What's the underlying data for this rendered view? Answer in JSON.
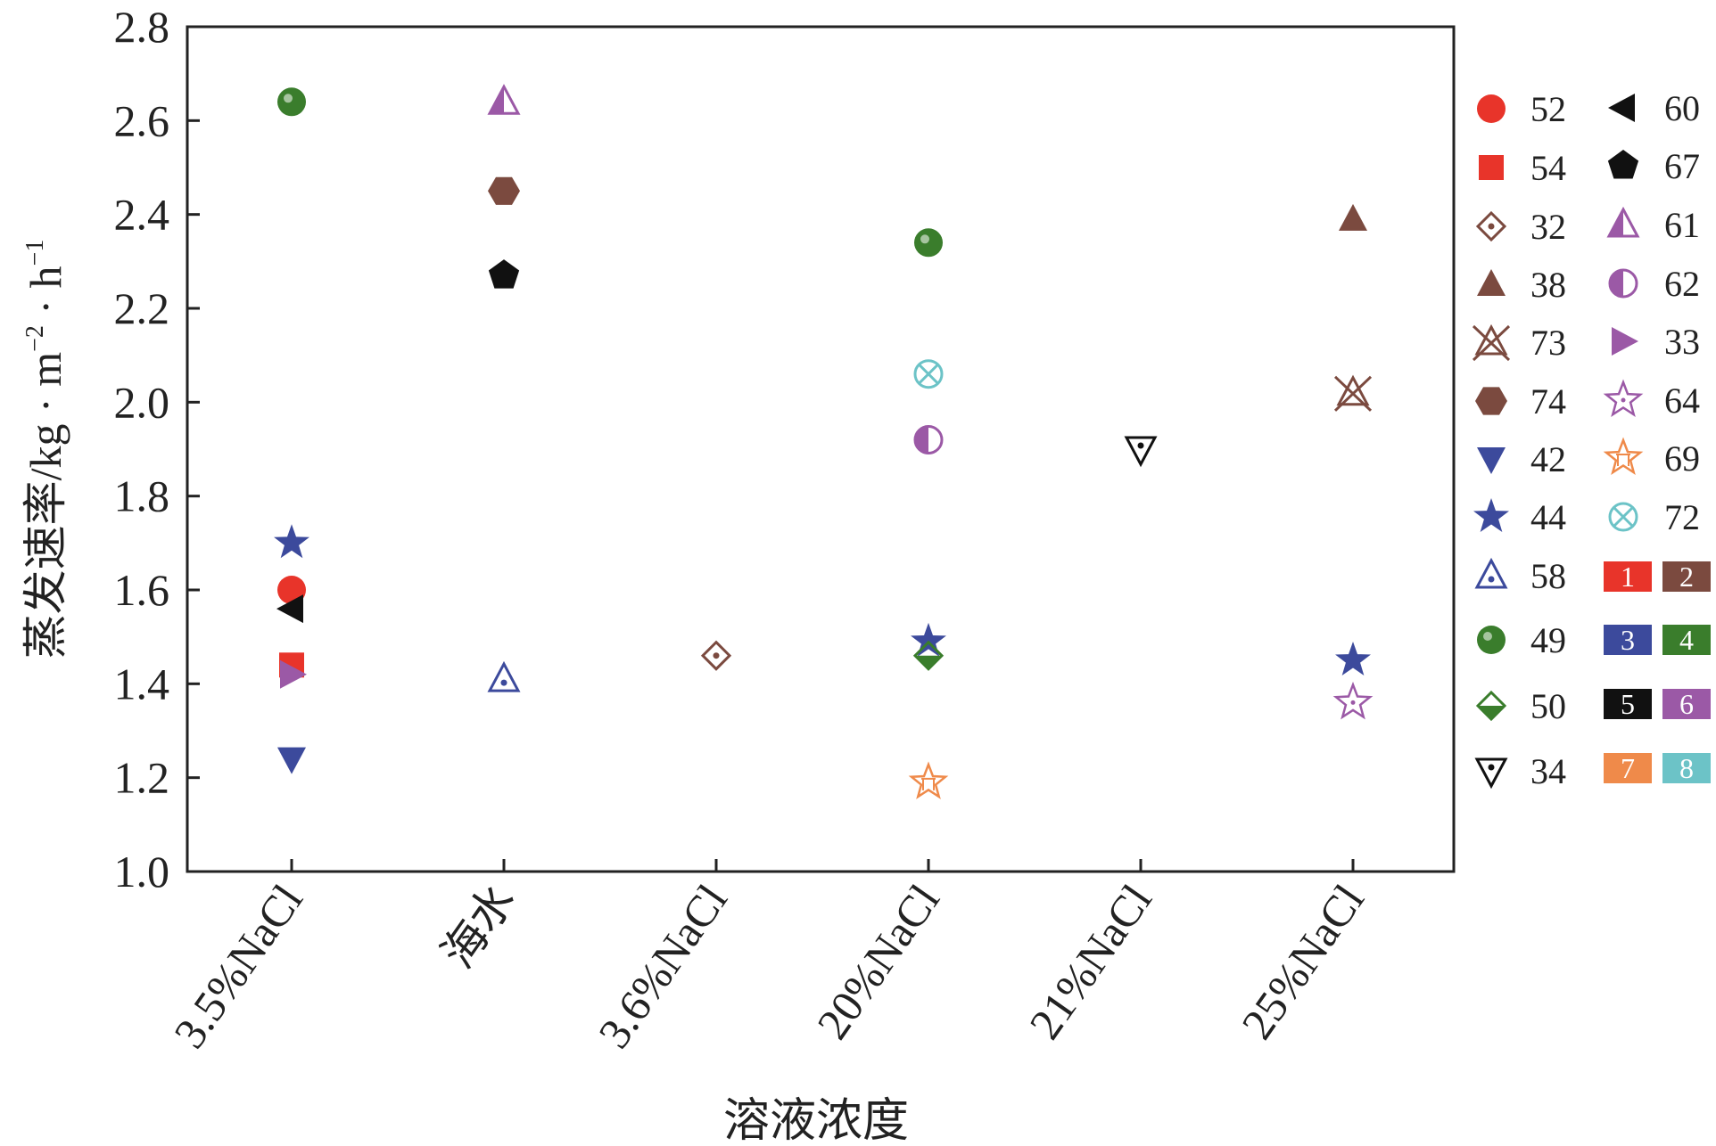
{
  "chart_data": {
    "type": "scatter",
    "title": "",
    "xlabel": "溶液浓度",
    "ylabel": "蒸发速率/kg·m⁻²·h⁻¹",
    "ylabel_parts": {
      "main": "蒸发速率/kg · m",
      "exp1": "−2",
      "mid": " · h",
      "exp2": "−1"
    },
    "categories": [
      "3.5%NaCl",
      "海水",
      "3.6%NaCl",
      "20%NaCl",
      "21%NaCl",
      "25%NaCl"
    ],
    "y_ticks": [
      "1.0",
      "1.2",
      "1.4",
      "1.6",
      "1.8",
      "2.0",
      "2.2",
      "2.4",
      "2.6",
      "2.8"
    ],
    "ylim": [
      1.0,
      2.8
    ],
    "grid": false,
    "legend_position": "right",
    "series": [
      {
        "name": "52",
        "marker": "circle",
        "color": "#e8342a",
        "points": [
          {
            "x": "3.5%NaCl",
            "y": 1.6
          }
        ]
      },
      {
        "name": "54",
        "marker": "square",
        "color": "#e8342a",
        "points": [
          {
            "x": "3.5%NaCl",
            "y": 1.44
          }
        ]
      },
      {
        "name": "32",
        "marker": "diamond-dot",
        "color": "#7b4a3f",
        "points": [
          {
            "x": "3.6%NaCl",
            "y": 1.46
          }
        ]
      },
      {
        "name": "38",
        "marker": "triangle-up",
        "color": "#7b4a3f",
        "points": [
          {
            "x": "25%NaCl",
            "y": 2.39
          }
        ]
      },
      {
        "name": "73",
        "marker": "triangle-x",
        "color": "#7b4a3f",
        "points": [
          {
            "x": "25%NaCl",
            "y": 2.02
          }
        ]
      },
      {
        "name": "74",
        "marker": "hexagon",
        "color": "#7b4a3f",
        "points": [
          {
            "x": "海水",
            "y": 2.45
          }
        ]
      },
      {
        "name": "42",
        "marker": "triangle-down",
        "color": "#3c4a9c",
        "points": [
          {
            "x": "3.5%NaCl",
            "y": 1.24
          }
        ]
      },
      {
        "name": "44",
        "marker": "star",
        "color": "#3c4a9c",
        "points": [
          {
            "x": "3.5%NaCl",
            "y": 1.7
          },
          {
            "x": "20%NaCl",
            "y": 1.49
          },
          {
            "x": "25%NaCl",
            "y": 1.45
          }
        ]
      },
      {
        "name": "58",
        "marker": "triangle-dot",
        "color": "#3c4a9c",
        "points": [
          {
            "x": "海水",
            "y": 1.41
          }
        ]
      },
      {
        "name": "49",
        "marker": "sphere",
        "color": "#3a7d2c",
        "points": [
          {
            "x": "3.5%NaCl",
            "y": 2.64
          },
          {
            "x": "20%NaCl",
            "y": 2.34
          }
        ]
      },
      {
        "name": "50",
        "marker": "diamond-half",
        "color": "#3a7d2c",
        "points": [
          {
            "x": "20%NaCl",
            "y": 1.46
          }
        ]
      },
      {
        "name": "34",
        "marker": "triangle-down-dot",
        "color": "#111111",
        "points": [
          {
            "x": "21%NaCl",
            "y": 1.9
          }
        ]
      },
      {
        "name": "60",
        "marker": "triangle-left",
        "color": "#111111",
        "points": [
          {
            "x": "3.5%NaCl",
            "y": 1.56
          }
        ]
      },
      {
        "name": "67",
        "marker": "pentagon",
        "color": "#111111",
        "points": [
          {
            "x": "海水",
            "y": 2.27
          }
        ]
      },
      {
        "name": "61",
        "marker": "triangle-half",
        "color": "#9b59a6",
        "points": [
          {
            "x": "海水",
            "y": 2.64
          }
        ]
      },
      {
        "name": "62",
        "marker": "circle-half",
        "color": "#9b59a6",
        "points": [
          {
            "x": "20%NaCl",
            "y": 1.92
          }
        ]
      },
      {
        "name": "33",
        "marker": "triangle-right",
        "color": "#9b59a6",
        "points": [
          {
            "x": "3.5%NaCl",
            "y": 1.42
          }
        ]
      },
      {
        "name": "64",
        "marker": "star-open",
        "color": "#9b59a6",
        "points": [
          {
            "x": "25%NaCl",
            "y": 1.36
          }
        ]
      },
      {
        "name": "69",
        "marker": "star-lined",
        "color": "#ef8a4a",
        "points": [
          {
            "x": "20%NaCl",
            "y": 1.19
          }
        ]
      },
      {
        "name": "72",
        "marker": "circle-x",
        "color": "#6cc3c7",
        "points": [
          {
            "x": "20%NaCl",
            "y": 2.06
          }
        ]
      }
    ],
    "color_swatches": [
      {
        "label": "1",
        "color": "#e8342a"
      },
      {
        "label": "2",
        "color": "#7b4a3f"
      },
      {
        "label": "3",
        "color": "#3c4a9c"
      },
      {
        "label": "4",
        "color": "#3a7d2c"
      },
      {
        "label": "5",
        "color": "#111111"
      },
      {
        "label": "6",
        "color": "#9b59a6"
      },
      {
        "label": "7",
        "color": "#ef8a4a"
      },
      {
        "label": "8",
        "color": "#6cc3c7"
      }
    ]
  }
}
